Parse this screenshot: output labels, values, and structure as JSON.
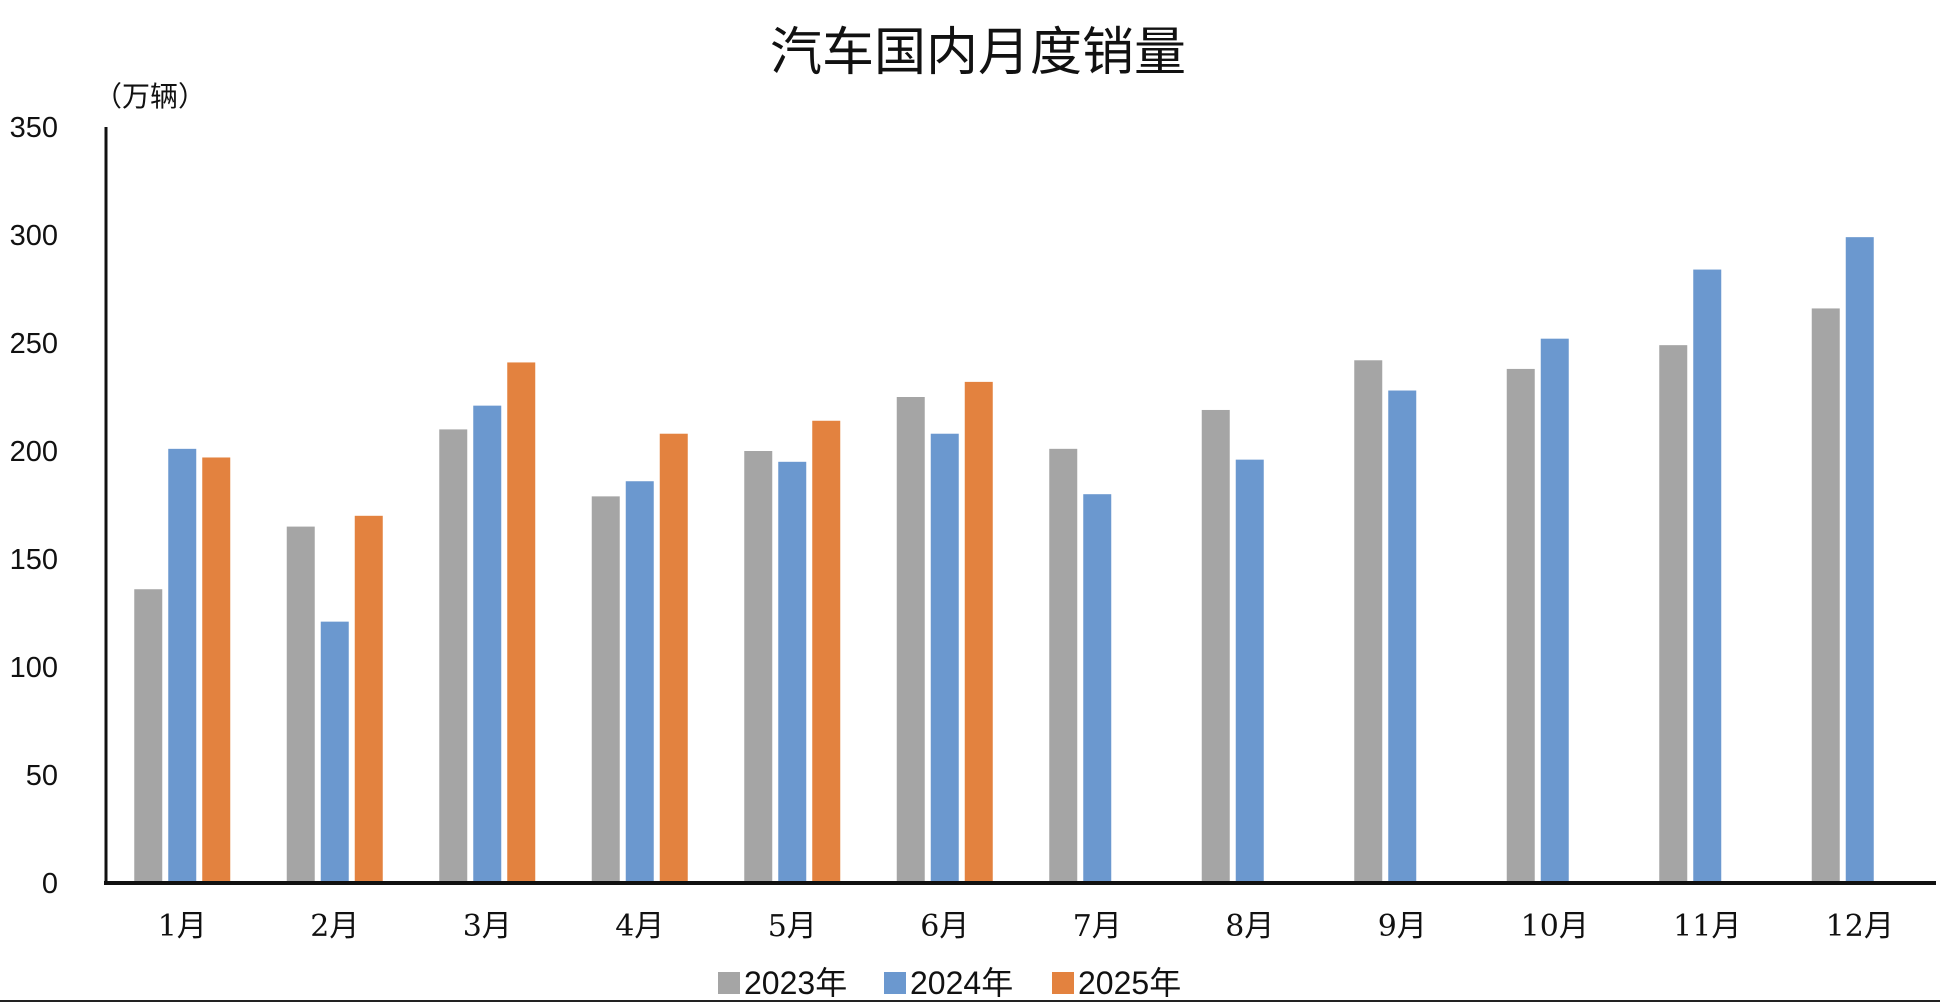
{
  "chart_data": {
    "type": "bar",
    "title": "汽车国内月度销量",
    "unit_label": "（万辆）",
    "xlabel": "",
    "ylabel": "",
    "ylim": [
      0,
      350
    ],
    "yticks": [
      0,
      50,
      100,
      150,
      200,
      250,
      300,
      350
    ],
    "grid": false,
    "legend_position": "bottom-center",
    "categories": [
      "1月",
      "2月",
      "3月",
      "4月",
      "5月",
      "6月",
      "7月",
      "8月",
      "9月",
      "10月",
      "11月",
      "12月"
    ],
    "series": [
      {
        "name": "2023年",
        "color": "#a5a5a5",
        "values": [
          136,
          165,
          210,
          179,
          200,
          225,
          201,
          219,
          242,
          238,
          249,
          266
        ]
      },
      {
        "name": "2024年",
        "color": "#6b98cf",
        "values": [
          201,
          121,
          221,
          186,
          195,
          208,
          180,
          196,
          228,
          252,
          284,
          299
        ]
      },
      {
        "name": "2025年",
        "color": "#e3823f",
        "values": [
          197,
          170,
          241,
          208,
          214,
          232,
          null,
          null,
          null,
          null,
          null,
          null
        ]
      }
    ]
  }
}
